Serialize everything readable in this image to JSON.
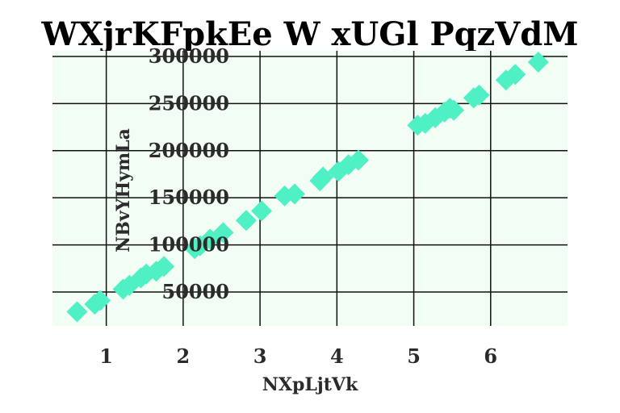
{
  "chart_data": {
    "type": "scatter",
    "title": "WXjrKFpkEe W xUGl PqzVdM",
    "xlabel": "NXpLjtVk",
    "ylabel": "NBvYHymLa",
    "xlim": [
      0.3,
      7.0
    ],
    "ylim": [
      14000,
      306000
    ],
    "xticks": [
      1,
      2,
      3,
      4,
      5,
      6
    ],
    "xtick_labels": [
      "1",
      "2",
      "3",
      "4",
      "5",
      "6"
    ],
    "yticks": [
      50000,
      100000,
      150000,
      200000,
      250000,
      300000
    ],
    "ytick_labels": [
      "50000",
      "100000",
      "150000",
      "200000",
      "250000",
      "300000"
    ],
    "grid": true,
    "marker": "diamond",
    "colors": {
      "marker": "#4ef0c4",
      "plot_background": "#f2fdf3",
      "grid": "#111111"
    },
    "series": [
      {
        "points": [
          {
            "x": 0.62,
            "y": 29000
          },
          {
            "x": 0.85,
            "y": 37000
          },
          {
            "x": 0.92,
            "y": 41000
          },
          {
            "x": 1.22,
            "y": 53000
          },
          {
            "x": 1.3,
            "y": 57000
          },
          {
            "x": 1.45,
            "y": 65000
          },
          {
            "x": 1.52,
            "y": 69000
          },
          {
            "x": 1.65,
            "y": 72000
          },
          {
            "x": 1.75,
            "y": 77000
          },
          {
            "x": 2.15,
            "y": 96000
          },
          {
            "x": 2.22,
            "y": 99000
          },
          {
            "x": 2.35,
            "y": 106000
          },
          {
            "x": 2.52,
            "y": 113000
          },
          {
            "x": 2.82,
            "y": 126000
          },
          {
            "x": 3.02,
            "y": 136000
          },
          {
            "x": 3.32,
            "y": 152000
          },
          {
            "x": 3.45,
            "y": 154000
          },
          {
            "x": 3.78,
            "y": 168000
          },
          {
            "x": 3.82,
            "y": 172000
          },
          {
            "x": 4.02,
            "y": 178000
          },
          {
            "x": 4.15,
            "y": 185000
          },
          {
            "x": 4.28,
            "y": 190000
          },
          {
            "x": 5.05,
            "y": 227000
          },
          {
            "x": 5.15,
            "y": 229000
          },
          {
            "x": 5.28,
            "y": 235000
          },
          {
            "x": 5.4,
            "y": 241000
          },
          {
            "x": 5.47,
            "y": 245000
          },
          {
            "x": 5.52,
            "y": 243000
          },
          {
            "x": 5.78,
            "y": 256000
          },
          {
            "x": 5.85,
            "y": 259000
          },
          {
            "x": 6.2,
            "y": 275000
          },
          {
            "x": 6.32,
            "y": 281000
          },
          {
            "x": 6.62,
            "y": 294000
          }
        ]
      }
    ]
  }
}
